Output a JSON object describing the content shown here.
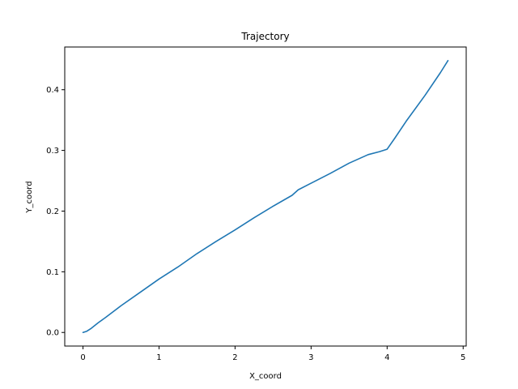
{
  "chart_data": {
    "type": "line",
    "title": "Trajectory",
    "xlabel": "X_coord",
    "ylabel": "Y_coord",
    "xlim": [
      -0.24,
      5.04
    ],
    "ylim": [
      -0.0224,
      0.4704
    ],
    "xticks": [
      0,
      1,
      2,
      3,
      4,
      5
    ],
    "xtick_labels": [
      "0",
      "1",
      "2",
      "3",
      "4",
      "5"
    ],
    "yticks": [
      0.0,
      0.1,
      0.2,
      0.3,
      0.4
    ],
    "ytick_labels": [
      "0.0",
      "0.1",
      "0.2",
      "0.3",
      "0.4"
    ],
    "grid": false,
    "series": [
      {
        "color": "#1f77b4",
        "x": [
          0,
          0.05,
          0.1,
          0.15,
          0.2,
          0.3,
          0.5,
          0.75,
          1.0,
          1.25,
          1.5,
          1.75,
          2.0,
          2.25,
          2.5,
          2.75,
          2.83,
          3.0,
          3.25,
          3.5,
          3.75,
          3.9,
          4.0,
          4.1,
          4.25,
          4.5,
          4.7,
          4.8
        ],
        "y": [
          0.0,
          0.002,
          0.006,
          0.011,
          0.016,
          0.025,
          0.044,
          0.066,
          0.088,
          0.108,
          0.13,
          0.15,
          0.169,
          0.189,
          0.208,
          0.226,
          0.235,
          0.246,
          0.262,
          0.279,
          0.293,
          0.298,
          0.302,
          0.32,
          0.348,
          0.391,
          0.428,
          0.448
        ]
      }
    ]
  }
}
